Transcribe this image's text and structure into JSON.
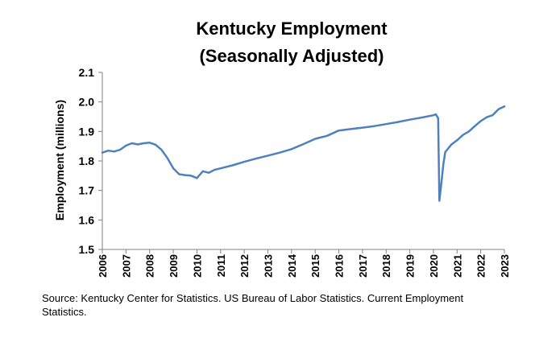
{
  "chart_data": {
    "type": "line",
    "title": [
      "Kentucky Employment",
      "(Seasonally Adjusted)"
    ],
    "xlabel": "",
    "ylabel": "Employment (millions)",
    "xlim": [
      2006,
      2023
    ],
    "ylim": [
      1.5,
      2.1
    ],
    "yticks": [
      "1.5",
      "1.6",
      "1.7",
      "1.8",
      "1.9",
      "2.0",
      "2.1"
    ],
    "xticks": [
      "2006",
      "2007",
      "2008",
      "2009",
      "2010",
      "2011",
      "2012",
      "2013",
      "2014",
      "2015",
      "2016",
      "2017",
      "2018",
      "2019",
      "2020",
      "2021",
      "2022",
      "2023"
    ],
    "grid": false,
    "series": [
      {
        "name": "Kentucky Employment",
        "color": "#4F81BD",
        "x": [
          2006.0,
          2006.25,
          2006.5,
          2006.75,
          2007.0,
          2007.25,
          2007.5,
          2007.75,
          2008.0,
          2008.25,
          2008.5,
          2008.75,
          2009.0,
          2009.25,
          2009.5,
          2009.75,
          2010.0,
          2010.25,
          2010.5,
          2010.75,
          2011.0,
          2011.5,
          2012.0,
          2012.5,
          2013.0,
          2013.5,
          2014.0,
          2014.5,
          2015.0,
          2015.5,
          2016.0,
          2016.5,
          2017.0,
          2017.5,
          2018.0,
          2018.5,
          2019.0,
          2019.5,
          2020.0,
          2020.1,
          2020.2,
          2020.25,
          2020.33,
          2020.42,
          2020.5,
          2020.75,
          2021.0,
          2021.25,
          2021.5,
          2021.75,
          2022.0,
          2022.25,
          2022.5,
          2022.75,
          2023.0
        ],
        "values": [
          1.828,
          1.835,
          1.832,
          1.838,
          1.852,
          1.86,
          1.856,
          1.86,
          1.862,
          1.855,
          1.838,
          1.81,
          1.775,
          1.755,
          1.752,
          1.75,
          1.742,
          1.765,
          1.76,
          1.77,
          1.775,
          1.785,
          1.797,
          1.808,
          1.818,
          1.828,
          1.84,
          1.857,
          1.875,
          1.885,
          1.903,
          1.908,
          1.913,
          1.918,
          1.925,
          1.932,
          1.94,
          1.947,
          1.955,
          1.958,
          1.945,
          1.665,
          1.72,
          1.79,
          1.83,
          1.855,
          1.87,
          1.888,
          1.9,
          1.918,
          1.935,
          1.948,
          1.955,
          1.975,
          1.985
        ]
      }
    ]
  },
  "source_note": "Source: Kentucky Center for Statistics. US Bureau of Labor Statistics. Current Employment Statistics."
}
